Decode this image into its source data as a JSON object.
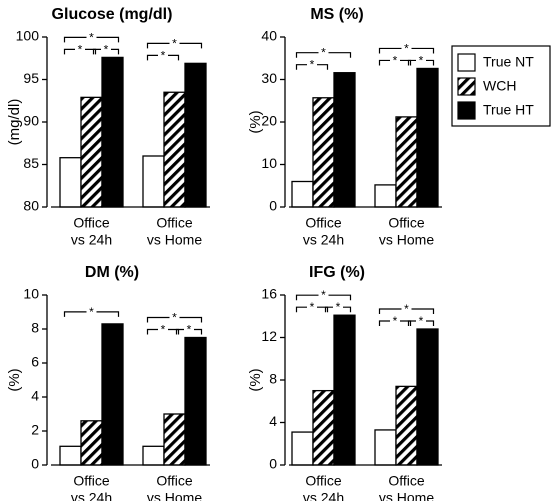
{
  "legend": [
    {
      "name": "True NT",
      "fill": "white"
    },
    {
      "name": "WCH",
      "fill": "hatch"
    },
    {
      "name": "True HT",
      "fill": "black"
    }
  ],
  "chart_data": [
    {
      "type": "bar",
      "title": "Glucose (mg/dl)",
      "ylabel": "(mg/dl)",
      "ylim": [
        80,
        100
      ],
      "yticks": [
        "80",
        "85",
        "90",
        "95",
        "100"
      ],
      "categories": [
        [
          "Office",
          "vs 24h"
        ],
        [
          "Office",
          "vs Home"
        ]
      ],
      "series": [
        {
          "name": "True NT",
          "values": [
            85.8,
            86.0
          ]
        },
        {
          "name": "WCH",
          "values": [
            92.9,
            93.5
          ]
        },
        {
          "name": "True HT",
          "values": [
            97.6,
            96.9
          ]
        }
      ],
      "significance": [
        {
          "group": 0,
          "pairs": [
            [
              0,
              2
            ],
            [
              0,
              1
            ],
            [
              1,
              2
            ]
          ]
        },
        {
          "group": 1,
          "pairs": [
            [
              0,
              2
            ],
            [
              0,
              1
            ]
          ]
        }
      ],
      "sig_label": "*"
    },
    {
      "type": "bar",
      "title": "MS (%)",
      "ylabel": "(%)",
      "ylim": [
        0,
        40
      ],
      "yticks": [
        "0",
        "10",
        "20",
        "30",
        "40"
      ],
      "categories": [
        [
          "Office",
          "vs 24h"
        ],
        [
          "Office",
          "vs Home"
        ]
      ],
      "series": [
        {
          "name": "True NT",
          "values": [
            6.0,
            5.2
          ]
        },
        {
          "name": "WCH",
          "values": [
            25.7,
            21.2
          ]
        },
        {
          "name": "True HT",
          "values": [
            31.6,
            32.6
          ]
        }
      ],
      "significance": [
        {
          "group": 0,
          "pairs": [
            [
              0,
              2
            ],
            [
              0,
              1
            ]
          ]
        },
        {
          "group": 1,
          "pairs": [
            [
              0,
              2
            ],
            [
              0,
              1
            ],
            [
              1,
              2
            ]
          ]
        }
      ],
      "sig_label": "*"
    },
    {
      "type": "bar",
      "title": "DM (%)",
      "ylabel": "(%)",
      "ylim": [
        0,
        10
      ],
      "yticks": [
        "0",
        "2",
        "4",
        "6",
        "8",
        "10"
      ],
      "categories": [
        [
          "Office",
          "vs 24h"
        ],
        [
          "Office",
          "vs Home"
        ]
      ],
      "series": [
        {
          "name": "True NT",
          "values": [
            1.1,
            1.1
          ]
        },
        {
          "name": "WCH",
          "values": [
            2.6,
            3.0
          ]
        },
        {
          "name": "True HT",
          "values": [
            8.3,
            7.5
          ]
        }
      ],
      "significance": [
        {
          "group": 0,
          "pairs": [
            [
              0,
              2
            ]
          ]
        },
        {
          "group": 1,
          "pairs": [
            [
              0,
              2
            ],
            [
              0,
              1
            ],
            [
              1,
              2
            ]
          ]
        }
      ],
      "sig_label": "*"
    },
    {
      "type": "bar",
      "title": "IFG (%)",
      "ylabel": "(%)",
      "ylim": [
        0,
        16
      ],
      "yticks": [
        "0",
        "4",
        "8",
        "12",
        "16"
      ],
      "categories": [
        [
          "Office",
          "vs 24h"
        ],
        [
          "Office",
          "vs Home"
        ]
      ],
      "series": [
        {
          "name": "True NT",
          "values": [
            3.1,
            3.3
          ]
        },
        {
          "name": "WCH",
          "values": [
            7.0,
            7.4
          ]
        },
        {
          "name": "True HT",
          "values": [
            14.1,
            12.8
          ]
        }
      ],
      "significance": [
        {
          "group": 0,
          "pairs": [
            [
              0,
              2
            ],
            [
              0,
              1
            ],
            [
              1,
              2
            ]
          ]
        },
        {
          "group": 1,
          "pairs": [
            [
              0,
              2
            ],
            [
              0,
              1
            ],
            [
              1,
              2
            ]
          ]
        }
      ],
      "sig_label": "*"
    }
  ]
}
